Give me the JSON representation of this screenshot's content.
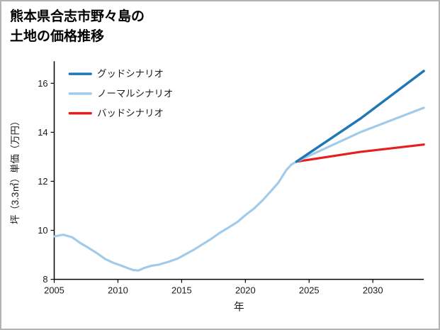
{
  "page": {
    "title_lines": [
      "熊本県合志市野々島の",
      "土地の価格推移"
    ]
  },
  "chart_data": {
    "type": "line",
    "title": "熊本県合志市野々島の土地の価格推移",
    "xlabel": "年",
    "ylabel": "坪（3.3㎡）単価（万円）",
    "xlim": [
      2005,
      2034
    ],
    "ylim": [
      8,
      16.9
    ],
    "xticks": [
      2005,
      2010,
      2015,
      2020,
      2025,
      2030
    ],
    "yticks": [
      8,
      10,
      12,
      14,
      16
    ],
    "grid": false,
    "legend_position": "top-left",
    "legend_order": [
      "good",
      "normal",
      "bad"
    ],
    "colors": {
      "good": "#1f77b4",
      "normal": "#a1cbeb",
      "bad": "#e81e1e",
      "axis": "#000000",
      "tick_text": "#1a1a1a",
      "legend_text": "#595959",
      "border": "#b3b3b3"
    },
    "series": [
      {
        "id": "history",
        "color_key": "normal",
        "width": 3.2,
        "in_legend": false,
        "x": [
          2005,
          2005.7,
          2006.4,
          2007,
          2007.7,
          2008.4,
          2009,
          2009.6,
          2010.2,
          2010.8,
          2011.2,
          2011.6,
          2012,
          2012.6,
          2013.2,
          2014,
          2014.7,
          2015.4,
          2016,
          2016.7,
          2017.4,
          2018,
          2018.7,
          2019.4,
          2020,
          2020.7,
          2021.4,
          2022,
          2022.6,
          2023.2,
          2023.6,
          2024
        ],
        "y": [
          9.75,
          9.82,
          9.72,
          9.5,
          9.28,
          9.05,
          8.83,
          8.68,
          8.57,
          8.45,
          8.38,
          8.36,
          8.45,
          8.55,
          8.6,
          8.72,
          8.85,
          9.05,
          9.22,
          9.45,
          9.68,
          9.9,
          10.12,
          10.35,
          10.62,
          10.9,
          11.25,
          11.6,
          11.95,
          12.45,
          12.68,
          12.8
        ]
      },
      {
        "id": "bad",
        "name": "バッドシナリオ",
        "color_key": "bad",
        "width": 3.2,
        "in_legend": true,
        "x": [
          2024,
          2029,
          2034
        ],
        "y": [
          12.8,
          13.2,
          13.5
        ]
      },
      {
        "id": "normal",
        "name": "ノーマルシナリオ",
        "color_key": "normal",
        "width": 3.2,
        "in_legend": true,
        "x": [
          2024,
          2029,
          2034
        ],
        "y": [
          12.8,
          14.0,
          15.0
        ]
      },
      {
        "id": "good",
        "name": "グッドシナリオ",
        "color_key": "good",
        "width": 3.5,
        "in_legend": true,
        "x": [
          2024,
          2029,
          2034
        ],
        "y": [
          12.8,
          14.55,
          16.5
        ]
      }
    ]
  }
}
